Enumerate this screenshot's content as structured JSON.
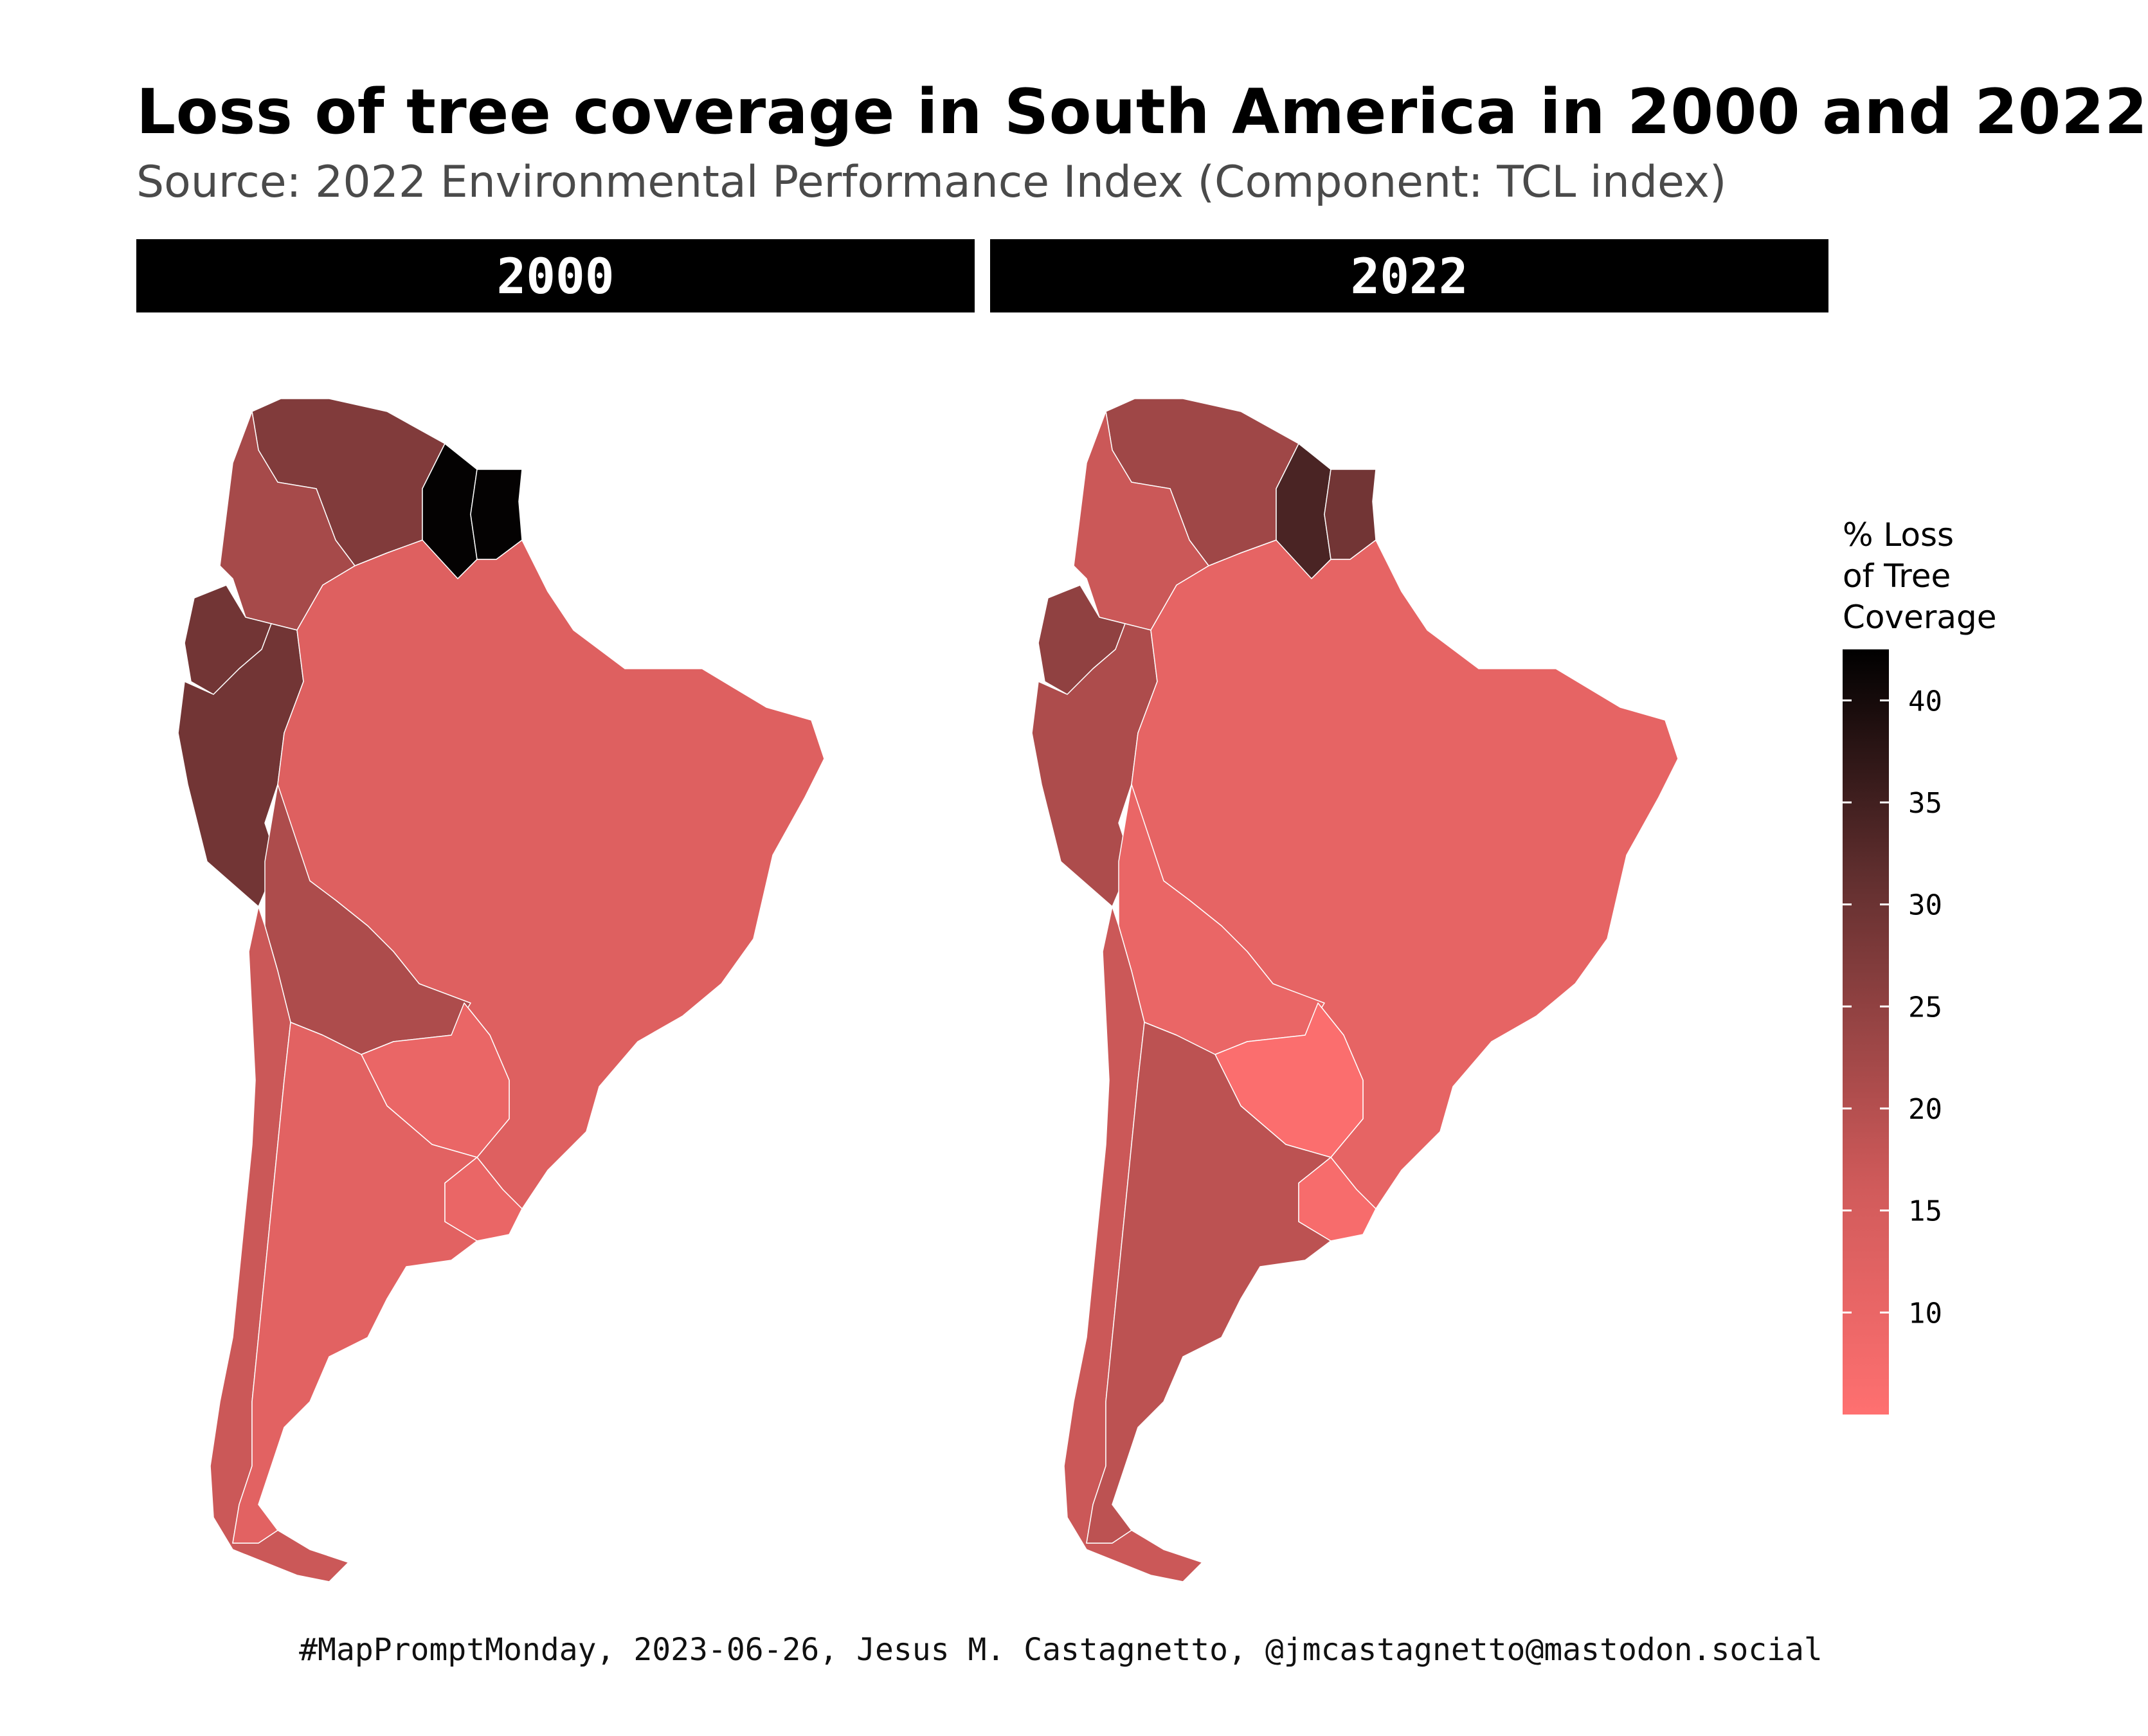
{
  "title": "Loss of tree coverage in South America in 2000 and 2022",
  "subtitle": "Source: 2022 Environmental Performance Index (Component: TCL index)",
  "caption": "#MapPromptMonday, 2023-06-26, Jesus M. Castagnetto, @jmcastagnetto@mastodon.social",
  "colors": {
    "low": "#ff7070",
    "mid": "#d05a5a",
    "high": "#622f2f",
    "max": "#000000",
    "border": "#ffffff",
    "strip_bg": "#000000",
    "strip_text": "#ffffff"
  },
  "legend": {
    "title_lines": [
      "% Loss",
      "of Tree",
      "Coverage"
    ],
    "min": 5,
    "max": 42.5,
    "ticks": [
      10,
      15,
      20,
      25,
      30,
      35,
      40
    ]
  },
  "chart_data": {
    "type": "choropleth",
    "unit": "% loss of tree coverage",
    "panels": [
      {
        "label": "2000",
        "regions": [
          {
            "country": "Venezuela",
            "value": 27
          },
          {
            "country": "Colombia",
            "value": 22
          },
          {
            "country": "Ecuador",
            "value": 29
          },
          {
            "country": "Peru",
            "value": 29
          },
          {
            "country": "Guyana",
            "value": 42
          },
          {
            "country": "Suriname",
            "value": 42
          },
          {
            "country": "Brazil",
            "value": 13
          },
          {
            "country": "Bolivia",
            "value": 21
          },
          {
            "country": "Paraguay",
            "value": 10
          },
          {
            "country": "Chile",
            "value": 17
          },
          {
            "country": "Argentina",
            "value": 12
          },
          {
            "country": "Uruguay",
            "value": 10
          }
        ]
      },
      {
        "label": "2022",
        "regions": [
          {
            "country": "Venezuela",
            "value": 23
          },
          {
            "country": "Colombia",
            "value": 17
          },
          {
            "country": "Ecuador",
            "value": 25
          },
          {
            "country": "Peru",
            "value": 21
          },
          {
            "country": "Guyana",
            "value": 34
          },
          {
            "country": "Suriname",
            "value": 29
          },
          {
            "country": "Brazil",
            "value": 11
          },
          {
            "country": "Bolivia",
            "value": 10
          },
          {
            "country": "Paraguay",
            "value": 6
          },
          {
            "country": "Chile",
            "value": 17
          },
          {
            "country": "Argentina",
            "value": 19
          },
          {
            "country": "Uruguay",
            "value": 7
          }
        ]
      }
    ]
  }
}
